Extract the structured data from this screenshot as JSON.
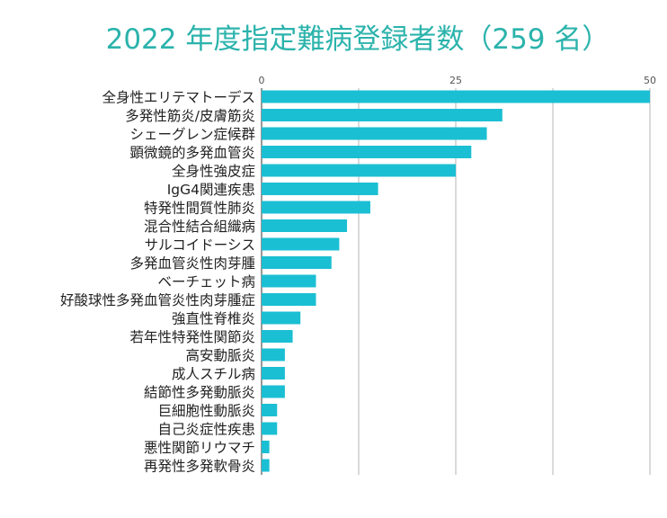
{
  "chart_data": {
    "type": "bar",
    "orientation": "horizontal",
    "title": "2022 年度指定難病登録者数（259 名）",
    "categories": [
      "全身性エリテマトーデス",
      "多発性筋炎/皮膚筋炎",
      "シェーグレン症候群",
      "顕微鏡的多発血管炎",
      "全身性強皮症",
      "IgG4関連疾患",
      "特発性間質性肺炎",
      "混合性結合組織病",
      "サルコイドーシス",
      "多発血管炎性肉芽腫",
      "ベーチェット病",
      "好酸球性多発血管炎性肉芽腫症",
      "強直性脊椎炎",
      "若年性特発性関節炎",
      "高安動脈炎",
      "成人スチル病",
      "結節性多発動脈炎",
      "巨細胞性動脈炎",
      "自己炎症性疾患",
      "悪性関節リウマチ",
      "再発性多発軟骨炎"
    ],
    "values": [
      50,
      31,
      29,
      27,
      25,
      15,
      14,
      11,
      10,
      9,
      7,
      7,
      5,
      4,
      3,
      3,
      3,
      2,
      2,
      1,
      1
    ],
    "xlim": [
      0,
      50
    ],
    "xticks": [
      0,
      25,
      50
    ],
    "xtick_labels": [
      "0",
      "25",
      "50"
    ],
    "grid": true,
    "bar_color": "#1bbfd3",
    "title_color": "#2bb3ac"
  }
}
